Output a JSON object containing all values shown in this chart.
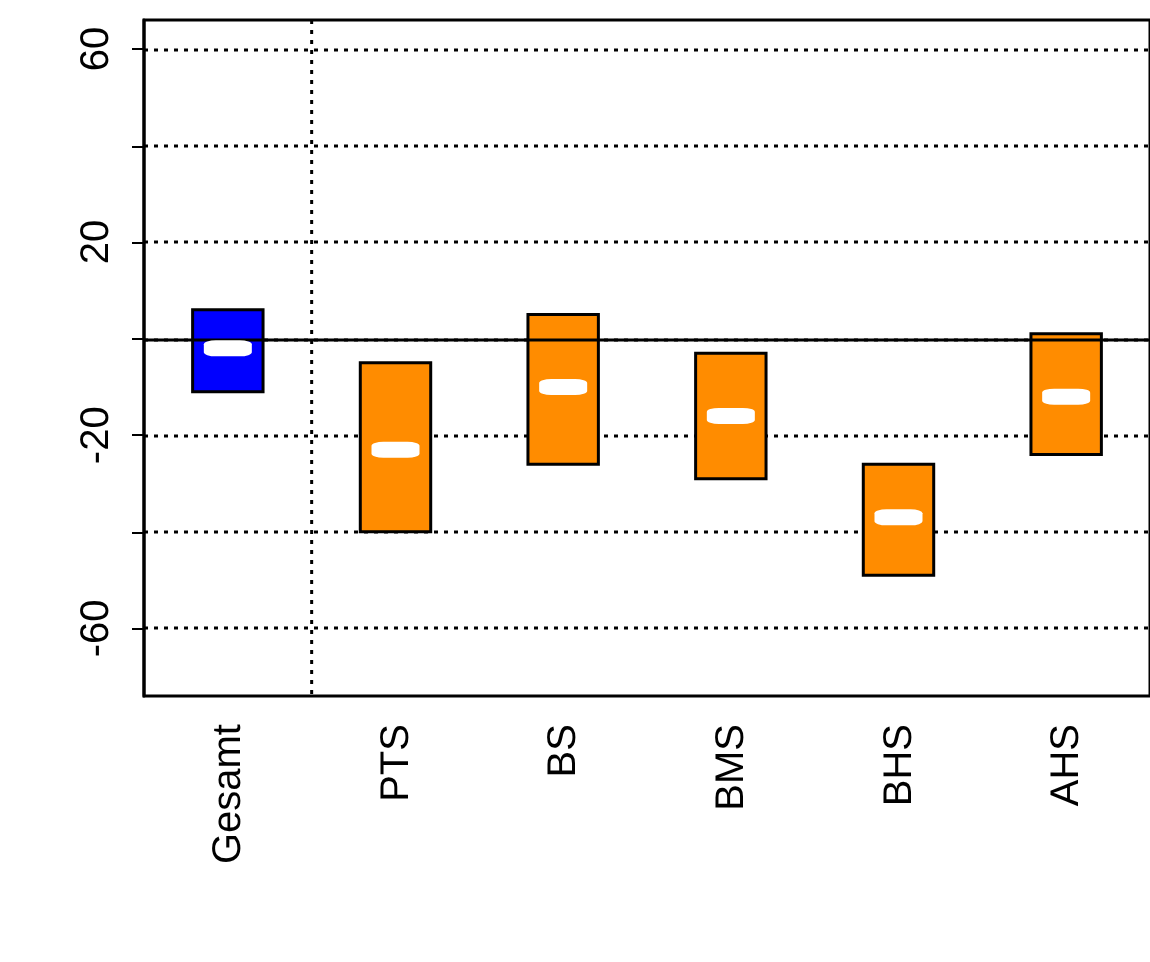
{
  "chart_data": {
    "type": "bar",
    "categories": [
      "Gesamt",
      "PTS",
      "BS",
      "BMS",
      "BHS",
      "AHS"
    ],
    "series": [
      {
        "colors": [
          "#0000ff",
          "#ff8c00",
          "#ff8c00",
          "#ff8c00",
          "#ff8c00",
          "#ff8c00"
        ],
        "base": [
          -11,
          -40,
          -26,
          -29,
          -49,
          -24
        ],
        "values": [
          17,
          35,
          31,
          26,
          23,
          25
        ]
      },
      {
        "type": "scatter",
        "color": "#ffffff",
        "x": [
          "Gesamt",
          "PTS",
          "BS",
          "BMS",
          "BHS",
          "AHS"
        ],
        "values": [
          -2,
          -23,
          -10,
          -16,
          -37,
          -12
        ]
      }
    ],
    "ylim": [
      -74,
      66
    ],
    "yticks": [
      60,
      {
        "value": 40,
        "label": null
      },
      20,
      {
        "value": 0,
        "label": null
      },
      -20,
      {
        "value": -40,
        "label": null
      },
      -60
    ],
    "grid": "y",
    "ref_lines": [
      {
        "axis": "y",
        "value": 0,
        "color": "#000000",
        "line_style": "solid"
      }
    ]
  }
}
